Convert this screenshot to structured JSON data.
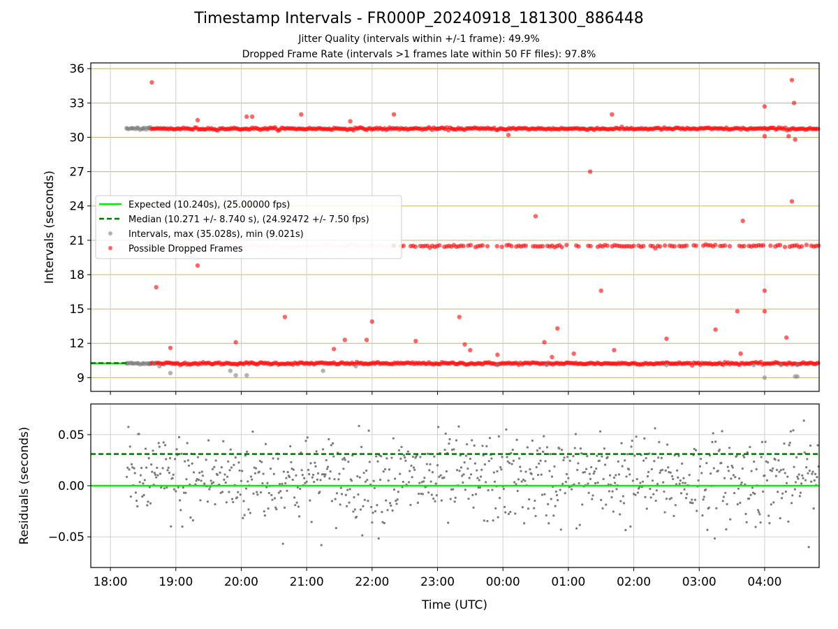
{
  "chart_data": [
    {
      "type": "scatter",
      "title": "Timestamp Intervals - FR000P_20240918_181300_886448",
      "subtitle_lines": [
        "Jitter Quality (intervals within +/-1 frame): 49.9%",
        "Dropped Frame Rate (intervals >1 frames late within 50 FF files): 97.8%"
      ],
      "ylabel": "Intervals (seconds)",
      "ylim": [
        7.8,
        36.5
      ],
      "yticks": [
        9,
        12,
        15,
        18,
        21,
        24,
        27,
        30,
        33,
        36
      ],
      "grid": true,
      "legend_placement": "center-left",
      "legend": [
        "Expected (10.240s), (25.00000 fps)",
        "Median (10.271 +/- 8.740 s), (24.92472 +/- 7.50 fps)",
        "Intervals, max (35.028s), min (9.021s)",
        "Possible Dropped Frames"
      ],
      "expected_interval": 10.24,
      "median_interval": 10.271,
      "series": [
        {
          "values_desc": "normal intervals (gray)",
          "x": [
            "18:15",
            "18:20",
            "18:25",
            "18:30",
            "18:35",
            "18:15",
            "18:20",
            "18:25",
            "18:30",
            "18:35",
            "18:40",
            "18:45",
            "18:55",
            "19:50",
            "20:05",
            "21:15",
            "21:45",
            "23:55",
            "00:40",
            "02:30",
            "03:50",
            "04:15",
            "04:30",
            "04:30",
            "04:00",
            "04:28",
            "19:55"
          ],
          "y": [
            30.8,
            30.8,
            30.8,
            30.8,
            30.8,
            10.25,
            10.25,
            10.25,
            10.25,
            10.25,
            10.25,
            10.0,
            9.4,
            9.6,
            9.2,
            9.6,
            10.0,
            10.1,
            10.1,
            10.1,
            10.1,
            10.1,
            10.1,
            9.1,
            9.0,
            9.1,
            9.2
          ]
        },
        {
          "values_desc": "possible dropped frames (red)",
          "x": [
            "18:38",
            "18:42",
            "18:55",
            "19:20",
            "19:20",
            "19:55",
            "20:05",
            "20:10",
            "20:40",
            "20:55",
            "21:25",
            "21:35",
            "21:55",
            "21:40",
            "22:00",
            "22:20",
            "22:40",
            "23:20",
            "23:25",
            "23:30",
            "23:55",
            "00:05",
            "00:30",
            "00:38",
            "00:45",
            "00:50",
            "01:05",
            "01:20",
            "01:30",
            "01:40",
            "01:42",
            "02:30",
            "03:15",
            "03:35",
            "03:38",
            "03:40",
            "04:00",
            "04:00",
            "04:00",
            "04:00",
            "04:22",
            "04:25",
            "04:25",
            "04:27",
            "04:28",
            "04:20"
          ],
          "y": [
            34.8,
            16.9,
            11.6,
            31.5,
            18.8,
            12.1,
            31.8,
            31.8,
            14.3,
            32.0,
            11.5,
            12.3,
            12.3,
            31.4,
            13.9,
            32.0,
            12.2,
            14.3,
            11.9,
            11.4,
            11.0,
            30.2,
            23.1,
            12.1,
            10.8,
            13.3,
            11.1,
            27.0,
            16.6,
            32.0,
            11.4,
            12.4,
            13.2,
            14.8,
            11.1,
            22.7,
            16.6,
            14.8,
            30.1,
            32.7,
            30.1,
            24.4,
            35.0,
            33.0,
            29.8,
            12.5
          ]
        }
      ]
    },
    {
      "type": "scatter",
      "xlabel": "Time (UTC)",
      "ylabel": "Residuals (seconds)",
      "ylim": [
        -0.08,
        0.08
      ],
      "yticks": [
        -0.05,
        0.0,
        0.05
      ],
      "ytick_labels": [
        "−0.05",
        "0.00",
        "0.05"
      ],
      "xticks": [
        "18:00",
        "19:00",
        "20:00",
        "21:00",
        "22:00",
        "23:00",
        "00:00",
        "01:00",
        "02:00",
        "03:00",
        "04:00"
      ],
      "xlim": [
        "17:42",
        "04:50"
      ],
      "grid": true,
      "expected_residual": 0.0,
      "median_residual": 0.031
    }
  ]
}
